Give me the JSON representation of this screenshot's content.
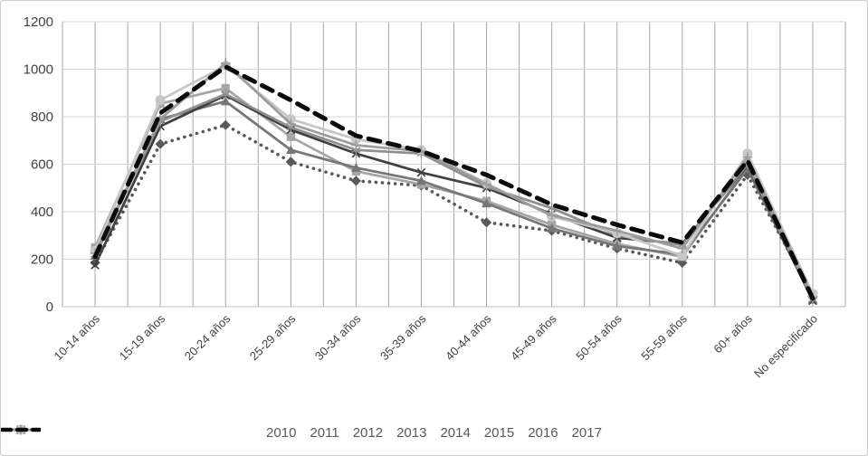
{
  "chart_data": {
    "type": "line",
    "title": "",
    "xlabel": "",
    "ylabel": "",
    "categories": [
      "10-14 años",
      "15-19 años",
      "20-24 años",
      "25-29 años",
      "30-34 años",
      "35-39 años",
      "40-44 años",
      "45-49 años",
      "50-54 años",
      "55-59 años",
      "60+ años",
      "No especificado"
    ],
    "ylim": [
      0,
      1200
    ],
    "yticks": [
      0,
      200,
      400,
      600,
      800,
      1000,
      1200
    ],
    "grid": "both",
    "legend_position": "bottom",
    "series": [
      {
        "name": "2010",
        "marker": "diamond",
        "line": "dotted",
        "color": "#595959",
        "values": [
          185,
          685,
          765,
          610,
          530,
          510,
          355,
          320,
          245,
          185,
          555,
          45
        ]
      },
      {
        "name": "2011",
        "marker": "square",
        "line": "solid",
        "color": "#a6a6a6",
        "values": [
          250,
          855,
          920,
          715,
          570,
          515,
          445,
          345,
          265,
          210,
          590,
          50
        ]
      },
      {
        "name": "2012",
        "marker": "triangle",
        "line": "solid",
        "color": "#767676",
        "values": [
          215,
          790,
          865,
          660,
          585,
          530,
          435,
          330,
          255,
          220,
          580,
          30
        ]
      },
      {
        "name": "2013",
        "marker": "x",
        "line": "solid",
        "color": "#3f3f3f",
        "values": [
          175,
          760,
          890,
          745,
          645,
          565,
          500,
          390,
          290,
          265,
          595,
          25
        ]
      },
      {
        "name": "2014",
        "marker": "asterisk",
        "line": "solid",
        "color": "#8f8f8f",
        "values": [
          220,
          780,
          895,
          755,
          660,
          645,
          505,
          415,
          300,
          260,
          600,
          30
        ]
      },
      {
        "name": "2015",
        "marker": "circle",
        "line": "solid",
        "color": "#c7c7c7",
        "values": [
          235,
          870,
          1015,
          790,
          705,
          660,
          520,
          380,
          310,
          215,
          645,
          55
        ]
      },
      {
        "name": "2016",
        "marker": "plus",
        "line": "solid",
        "color": "#9c9c9c",
        "values": [
          225,
          790,
          1025,
          770,
          680,
          655,
          515,
          385,
          320,
          245,
          630,
          40
        ]
      },
      {
        "name": "2017",
        "marker": "none",
        "line": "dashed",
        "color": "#0a0a0a",
        "values": [
          210,
          815,
          1010,
          870,
          720,
          655,
          555,
          430,
          345,
          270,
          615,
          35
        ]
      }
    ]
  },
  "style": {
    "background": "#ffffff",
    "frame_border": "#d0cece",
    "grid_horizontal": "#d6d6d6",
    "grid_vertical": "#a6a6a6",
    "axis_line": "#bfbfbf",
    "tick_text": "#404040",
    "legend_text": "#595959"
  }
}
